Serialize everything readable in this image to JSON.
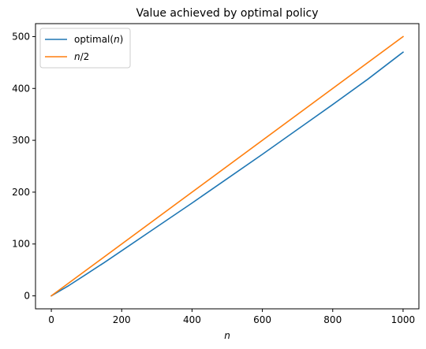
{
  "chart_data": {
    "type": "line",
    "title": "Value achieved by optimal policy",
    "xlabel": "n",
    "ylabel": "",
    "xlim": [
      -45,
      1045
    ],
    "ylim": [
      -25,
      525
    ],
    "xticks": [
      0,
      200,
      400,
      600,
      800,
      1000
    ],
    "yticks": [
      0,
      100,
      200,
      300,
      400,
      500
    ],
    "grid": false,
    "legend_position": "top-left",
    "series": [
      {
        "name": "optimal(n)",
        "color": "#1f77b4",
        "x": [
          0,
          50,
          100,
          150,
          200,
          300,
          400,
          500,
          600,
          700,
          800,
          900,
          1000
        ],
        "y": [
          0,
          20,
          42,
          64,
          87,
          133,
          179,
          226,
          273,
          321,
          369,
          418,
          470
        ]
      },
      {
        "name": "n/2",
        "color": "#ff7f0e",
        "x": [
          0,
          1000
        ],
        "y": [
          0,
          500
        ]
      }
    ]
  }
}
